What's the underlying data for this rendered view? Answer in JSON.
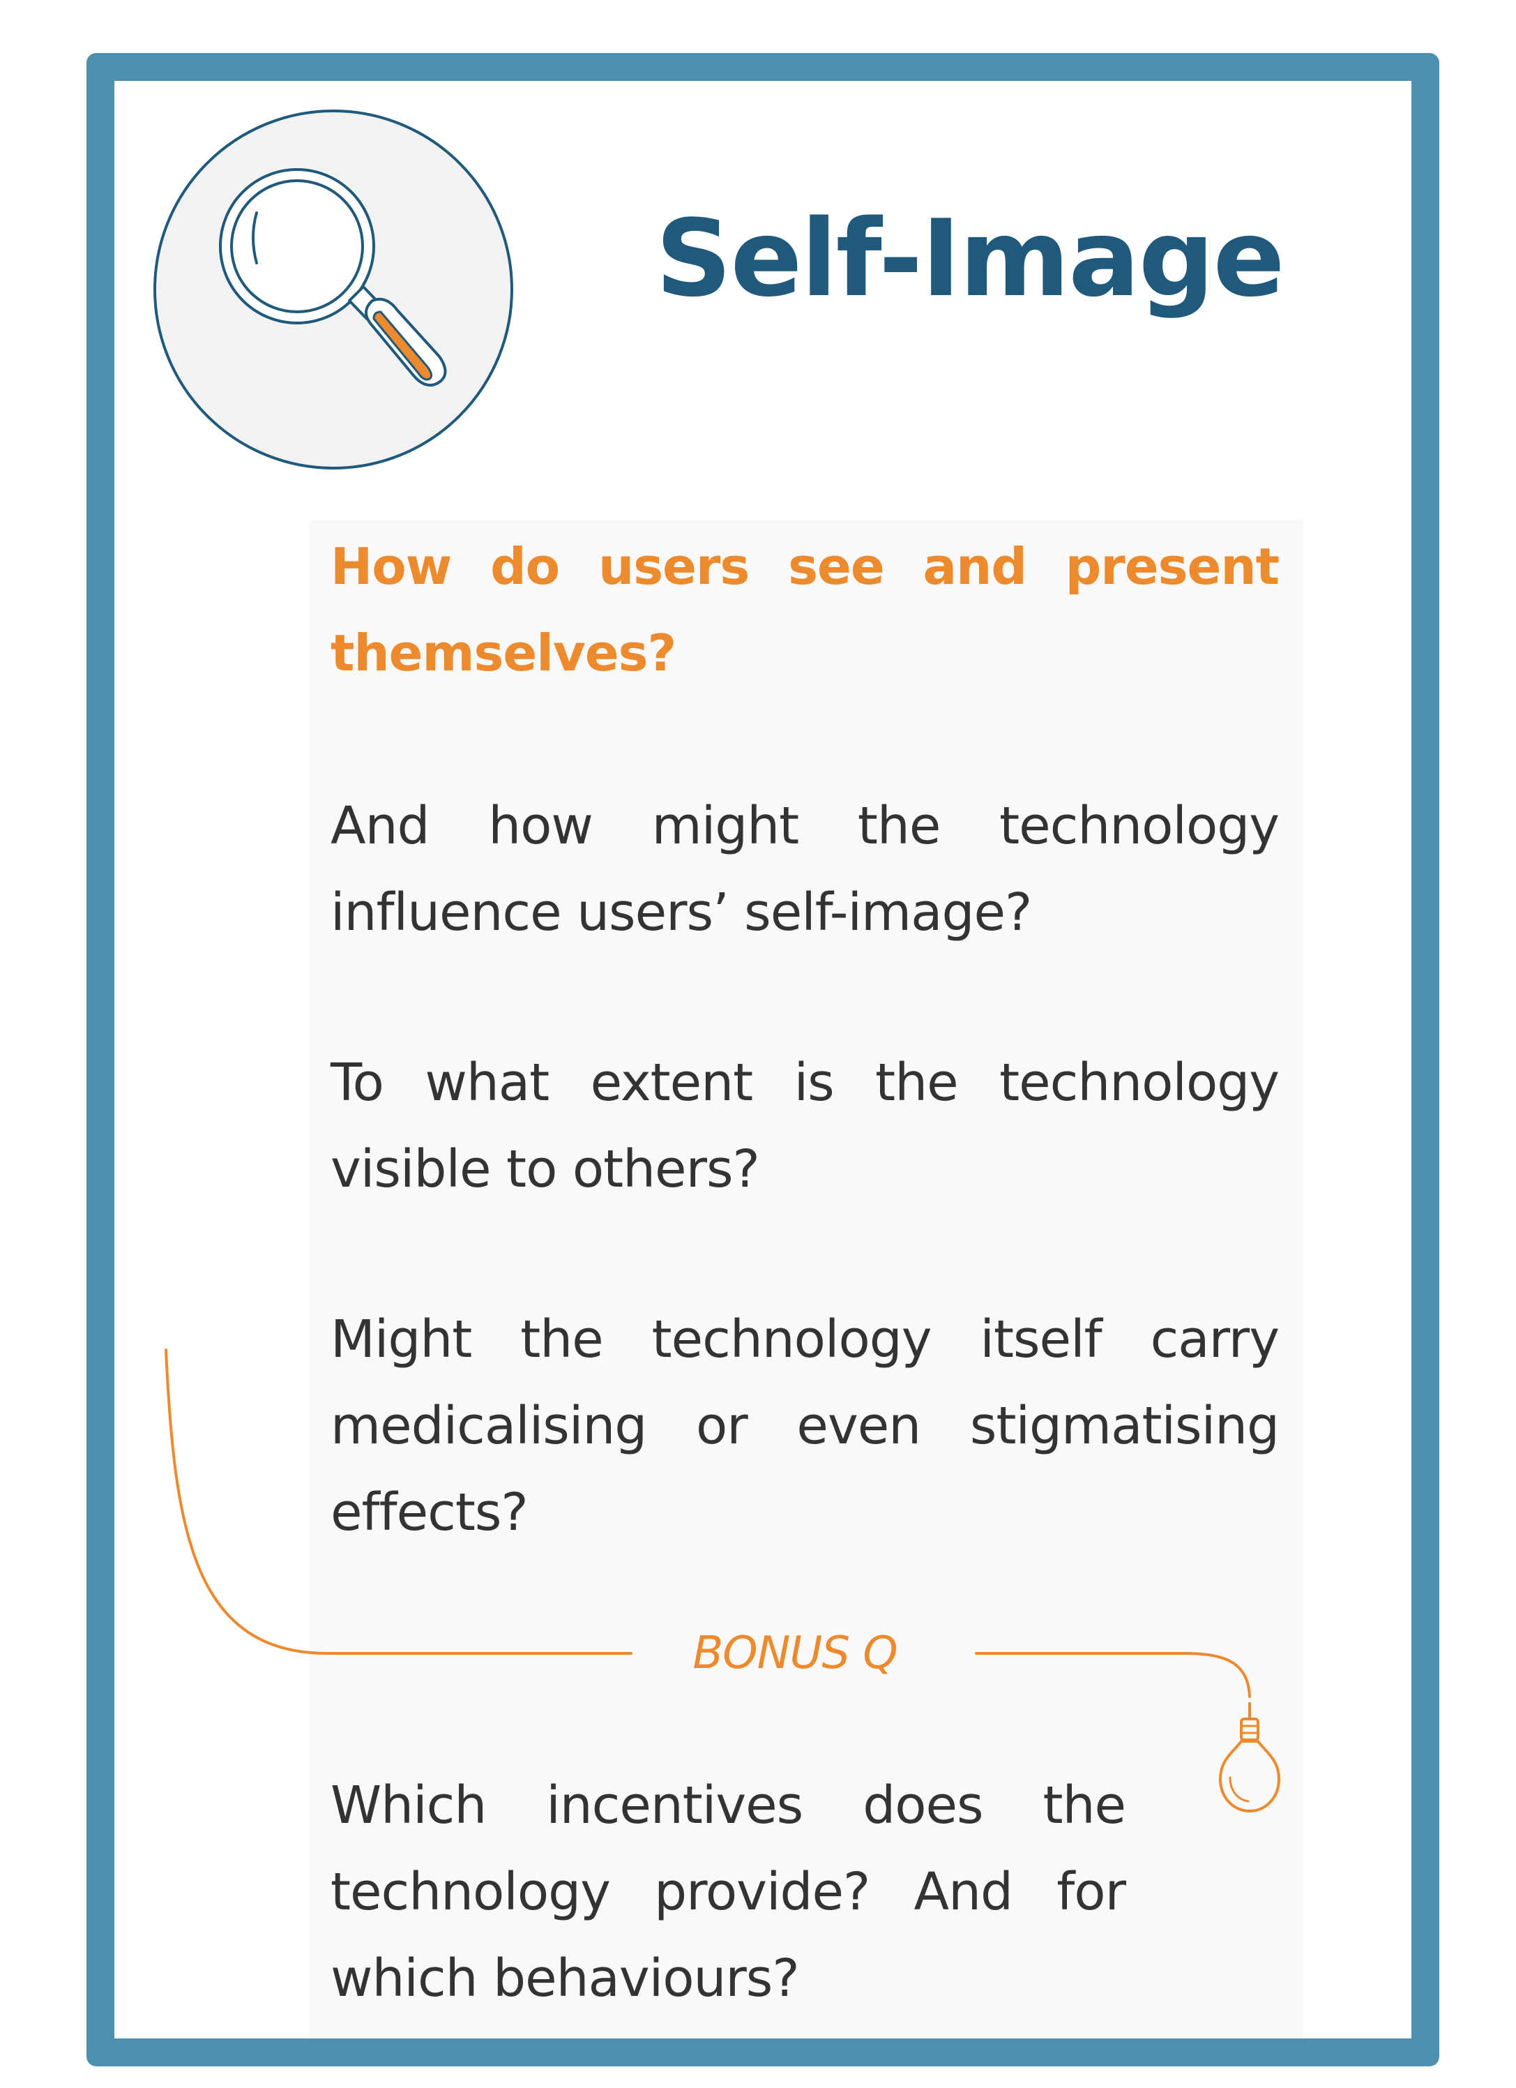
{
  "card": {
    "title": "Self-Image",
    "lead_question": "How do users see and present themselves?",
    "questions": [
      "And how might the technology influence users’ self-image?",
      "To what extent is the technology visible to others?",
      "Might the technology itself carry medicalising or even stigmatising effects?"
    ],
    "bonus_label": "BONUS Q",
    "bonus_question": "Which incentives does the technology provide? And for which behaviours?",
    "icons": {
      "main": "magnifying-glass-icon",
      "bonus": "light-bulb-icon"
    }
  },
  "colors": {
    "frame": "#4e8fae",
    "title": "#1f5a7c",
    "accent": "#ee8a2e",
    "body_text": "#333333",
    "panel": "#f8f9f8"
  }
}
